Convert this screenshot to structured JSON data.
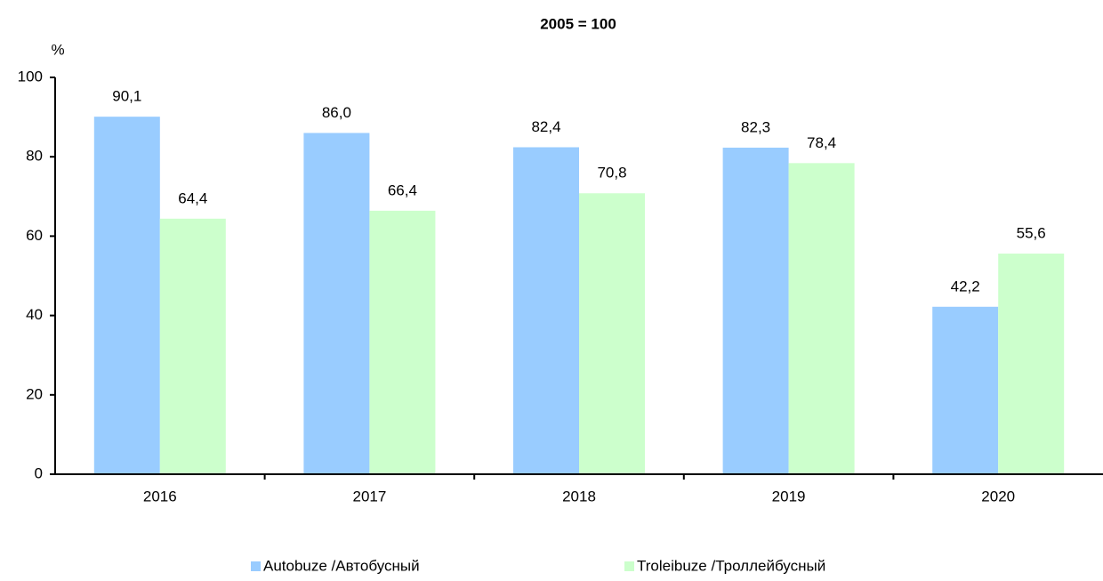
{
  "chart_data": {
    "type": "bar",
    "title": "2005 = 100",
    "y_label": "%",
    "categories": [
      "2016",
      "2017",
      "2018",
      "2019",
      "2020"
    ],
    "series": [
      {
        "name": "Autobuze /Автобусный",
        "color": "#99ccff",
        "values": [
          90.1,
          86.0,
          82.4,
          82.3,
          42.2
        ],
        "value_labels": [
          "90,1",
          "86,0",
          "82,4",
          "82,3",
          "42,2"
        ]
      },
      {
        "name": "Troleibuze /Троллейбусный",
        "color": "#ccffcc",
        "values": [
          64.4,
          66.4,
          70.8,
          78.4,
          55.6
        ],
        "value_labels": [
          "64,4",
          "66,4",
          "70,8",
          "78,4",
          "55,6"
        ]
      }
    ],
    "ylim": [
      0,
      100
    ],
    "yticks": [
      0,
      20,
      40,
      60,
      80,
      100
    ],
    "grid": false,
    "legend": "bottom"
  }
}
